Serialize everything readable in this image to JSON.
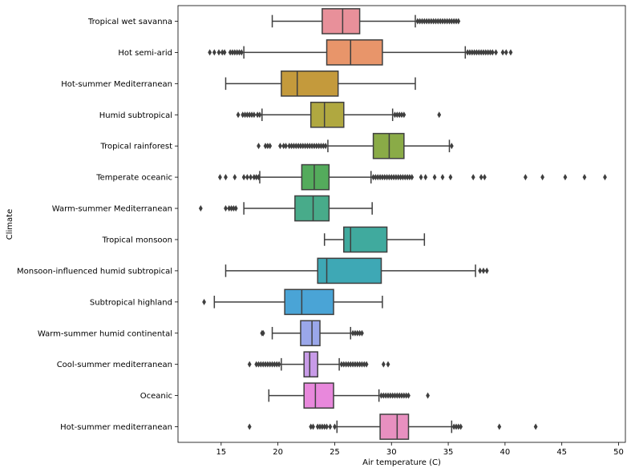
{
  "chart_data": {
    "type": "boxplot",
    "orientation": "horizontal",
    "xlabel": "Air temperature (C)",
    "ylabel": "Climate",
    "xlim": [
      11.2,
      50.6
    ],
    "xticks": [
      15,
      20,
      25,
      30,
      35,
      40,
      45,
      50
    ],
    "grid": false,
    "categories": [
      "Tropical wet savanna",
      "Hot semi-arid",
      "Hot-summer Mediterranean",
      "Humid subtropical",
      "Tropical rainforest",
      "Temperate oceanic",
      "Warm-summer Mediterranean",
      "Tropical monsoon",
      "Monsoon-influenced humid subtropical",
      "Subtropical highland",
      "Warm-summer humid continental",
      "Cool-summer mediterranean",
      "Oceanic",
      "Hot-summer mediterranean"
    ],
    "boxes": [
      {
        "whisker_low": 19.5,
        "q1": 23.9,
        "median": 25.7,
        "q3": 27.2,
        "whisker_high": 32.1,
        "color": "#e8909a",
        "outliers": [
          32.3,
          32.5,
          32.7,
          32.9,
          33.1,
          33.3,
          33.5,
          33.7,
          33.9,
          34.1,
          34.3,
          34.5,
          34.7,
          34.9,
          35.1,
          35.3,
          35.5,
          35.7,
          35.9
        ]
      },
      {
        "whisker_low": 17.0,
        "q1": 24.3,
        "median": 26.4,
        "q3": 29.2,
        "whisker_high": 36.5,
        "color": "#e8956a",
        "outliers": [
          14.0,
          14.4,
          14.8,
          15.1,
          15.3,
          15.8,
          16.0,
          16.2,
          16.4,
          16.6,
          16.8,
          36.7,
          36.9,
          37.1,
          37.3,
          37.5,
          37.7,
          37.9,
          38.1,
          38.3,
          38.5,
          38.7,
          38.9,
          39.2,
          39.8,
          40.1,
          40.5
        ]
      },
      {
        "whisker_low": 15.4,
        "q1": 20.3,
        "median": 21.7,
        "q3": 25.3,
        "whisker_high": 32.1,
        "color": "#c49a3c",
        "outliers": []
      },
      {
        "whisker_low": 18.6,
        "q1": 22.9,
        "median": 24.1,
        "q3": 25.8,
        "whisker_high": 30.1,
        "color": "#b0a840",
        "outliers": [
          16.5,
          16.9,
          17.1,
          17.3,
          17.5,
          17.7,
          17.9,
          18.2,
          18.4,
          30.3,
          30.5,
          30.7,
          30.9,
          31.1,
          34.2
        ]
      },
      {
        "whisker_low": 24.4,
        "q1": 28.4,
        "median": 29.8,
        "q3": 31.1,
        "whisker_high": 35.1,
        "color": "#8aab47",
        "outliers": [
          18.3,
          18.9,
          19.1,
          19.3,
          20.2,
          20.5,
          20.7,
          21.0,
          21.2,
          21.4,
          21.6,
          21.8,
          22.0,
          22.2,
          22.4,
          22.6,
          22.8,
          23.0,
          23.2,
          23.4,
          23.6,
          23.8,
          24.0,
          24.2,
          35.3
        ]
      },
      {
        "whisker_low": 18.4,
        "q1": 22.1,
        "median": 23.2,
        "q3": 24.5,
        "whisker_high": 28.2,
        "color": "#54ab5c",
        "outliers": [
          14.9,
          15.4,
          16.2,
          17.0,
          17.3,
          17.6,
          17.9,
          18.1,
          18.3,
          28.4,
          28.6,
          28.8,
          29.0,
          29.2,
          29.4,
          29.6,
          29.8,
          30.0,
          30.2,
          30.4,
          30.6,
          30.8,
          31.0,
          31.2,
          31.4,
          31.6,
          31.8,
          32.6,
          33.0,
          33.8,
          34.5,
          35.2,
          37.2,
          37.9,
          38.2,
          41.8,
          43.3,
          45.3,
          47.0,
          48.8
        ]
      },
      {
        "whisker_low": 17.0,
        "q1": 21.5,
        "median": 23.1,
        "q3": 24.5,
        "whisker_high": 28.3,
        "color": "#48ab8a",
        "outliers": [
          13.2,
          15.4,
          15.7,
          15.9,
          16.1,
          16.3
        ]
      },
      {
        "whisker_low": 24.1,
        "q1": 25.8,
        "median": 26.4,
        "q3": 29.6,
        "whisker_high": 32.9,
        "color": "#40aa9e",
        "outliers": []
      },
      {
        "whisker_low": 15.4,
        "q1": 23.5,
        "median": 24.3,
        "q3": 29.1,
        "whisker_high": 37.4,
        "color": "#3ea8b5",
        "outliers": [
          37.8,
          38.1,
          38.4
        ]
      },
      {
        "whisker_low": 14.4,
        "q1": 20.6,
        "median": 22.1,
        "q3": 24.9,
        "whisker_high": 29.2,
        "color": "#4aa4d6",
        "outliers": [
          13.5
        ]
      },
      {
        "whisker_low": 19.5,
        "q1": 22.0,
        "median": 23.0,
        "q3": 23.7,
        "whisker_high": 26.4,
        "color": "#9aa7ea",
        "outliers": [
          18.6,
          18.7,
          26.6,
          26.8,
          27.0,
          27.2,
          27.4
        ]
      },
      {
        "whisker_low": 20.3,
        "q1": 22.3,
        "median": 22.8,
        "q3": 23.5,
        "whisker_high": 25.4,
        "color": "#c89be8",
        "outliers": [
          17.5,
          18.1,
          18.3,
          18.5,
          18.7,
          18.9,
          19.1,
          19.3,
          19.5,
          19.7,
          19.9,
          20.1,
          25.6,
          25.8,
          26.0,
          26.2,
          26.4,
          26.6,
          26.8,
          27.0,
          27.2,
          27.4,
          27.6,
          27.8,
          29.3,
          29.7
        ]
      },
      {
        "whisker_low": 19.2,
        "q1": 22.3,
        "median": 23.3,
        "q3": 24.9,
        "whisker_high": 28.9,
        "color": "#e888dc",
        "outliers": [
          29.1,
          29.3,
          29.5,
          29.7,
          29.9,
          30.1,
          30.3,
          30.5,
          30.7,
          30.9,
          31.1,
          31.3,
          31.5,
          33.2
        ]
      },
      {
        "whisker_low": 25.2,
        "q1": 29.0,
        "median": 30.5,
        "q3": 31.5,
        "whisker_high": 35.3,
        "color": "#e890c0",
        "outliers": [
          17.5,
          22.9,
          23.1,
          23.5,
          23.7,
          23.9,
          24.1,
          24.3,
          24.6,
          25.0,
          35.5,
          35.7,
          35.9,
          36.1,
          39.5,
          42.7
        ]
      }
    ]
  }
}
